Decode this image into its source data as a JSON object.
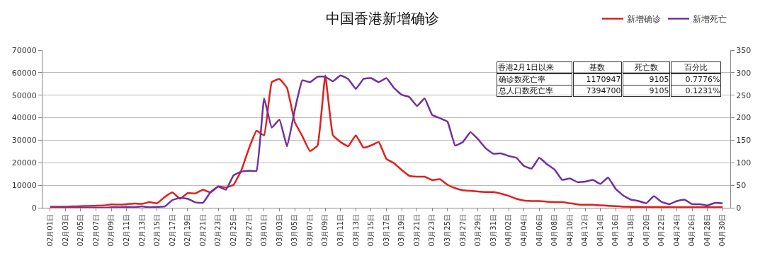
{
  "chart_data": {
    "type": "line",
    "title": "中国香港新增确诊",
    "categories": [
      "02月01日",
      null,
      "02月03日",
      null,
      "02月05日",
      null,
      "02月07日",
      null,
      "02月09日",
      null,
      "02月11日",
      null,
      "02月13日",
      null,
      "02月15日",
      null,
      "02月17日",
      null,
      "02月19日",
      null,
      "02月21日",
      null,
      "02月23日",
      null,
      "02月25日",
      null,
      "02月27日",
      null,
      "03月01日",
      null,
      "03月03日",
      null,
      "03月05日",
      null,
      "03月07日",
      null,
      "03月09日",
      null,
      "03月11日",
      null,
      "03月13日",
      null,
      "03月15日",
      null,
      "03月17日",
      null,
      "03月19日",
      null,
      "03月21日",
      null,
      "03月23日",
      null,
      "03月25日",
      null,
      "03月27日",
      null,
      "03月29日",
      null,
      "03月31日",
      null,
      "04月02日",
      null,
      "04月04日",
      null,
      "04月06日",
      null,
      "04月08日",
      null,
      "04月10日",
      null,
      "04月12日",
      null,
      "04月14日",
      null,
      "04月16日",
      null,
      "04月18日",
      null,
      "04月20日",
      null,
      "04月22日",
      null,
      "04月24日",
      null,
      "04月26日",
      null,
      "04月28日",
      null,
      "04月30日"
    ],
    "series": [
      {
        "name": "新增确诊",
        "color": "#e0201b",
        "values": [
          500,
          500,
          500,
          600,
          700,
          800,
          900,
          1000,
          1500,
          1400,
          1600,
          1900,
          1700,
          2500,
          2000,
          4800,
          6800,
          4000,
          6500,
          6400,
          8000,
          6800,
          9500,
          9000,
          10200,
          16500,
          26200,
          34200,
          32200,
          55800,
          57200,
          53200,
          38200,
          31800,
          25200,
          27700,
          58800,
          32200,
          29200,
          27300,
          32200,
          26700,
          27700,
          29200,
          21700,
          19800,
          16800,
          14200,
          13800,
          13800,
          12300,
          12700,
          10200,
          8700,
          7800,
          7500,
          7200,
          7000,
          7000,
          6300,
          5300,
          4000,
          3200,
          3000,
          3000,
          2700,
          2500,
          2500,
          2000,
          1500,
          1300,
          1300,
          1100,
          900,
          700,
          500,
          400,
          400,
          300,
          300,
          300,
          300,
          200,
          200,
          200,
          200,
          200,
          200,
          200
        ]
      },
      {
        "name": "新增死亡",
        "color": "#7030a0",
        "axis": "y2",
        "values": [
          0,
          0,
          0,
          0,
          0,
          0,
          0,
          0,
          1,
          1,
          2,
          1,
          3,
          1,
          2,
          3,
          17,
          22,
          20,
          12,
          11,
          35,
          47,
          40,
          72,
          80,
          82,
          82,
          243,
          178,
          196,
          136,
          216,
          283,
          279,
          291,
          291,
          281,
          294,
          286,
          264,
          286,
          288,
          279,
          288,
          266,
          251,
          246,
          226,
          243,
          206,
          199,
          191,
          138,
          146,
          168,
          152,
          132,
          120,
          121,
          115,
          111,
          93,
          87,
          111,
          97,
          85,
          62,
          65,
          57,
          58,
          62,
          53,
          67,
          42,
          27,
          18,
          15,
          10,
          26,
          13,
          8,
          15,
          18,
          8,
          8,
          5,
          11,
          10
        ]
      }
    ],
    "ylim": [
      0,
      70000
    ],
    "yticks": [
      0,
      10000,
      20000,
      30000,
      40000,
      50000,
      60000,
      70000
    ],
    "y2lim": [
      0,
      350
    ],
    "y2ticks": [
      0,
      50,
      100,
      150,
      200,
      250,
      300,
      350
    ],
    "grid": "y",
    "legend": "top right",
    "marker": "none",
    "line_style": "solid",
    "annotations": [
      "香港2月1日以来",
      "基数",
      "死亡数",
      "百分比",
      "确诊数死亡率",
      "1170947",
      "9105",
      "0.7776%",
      "总人口数死亡率",
      "7394700",
      "9105",
      "0.1231%"
    ]
  }
}
